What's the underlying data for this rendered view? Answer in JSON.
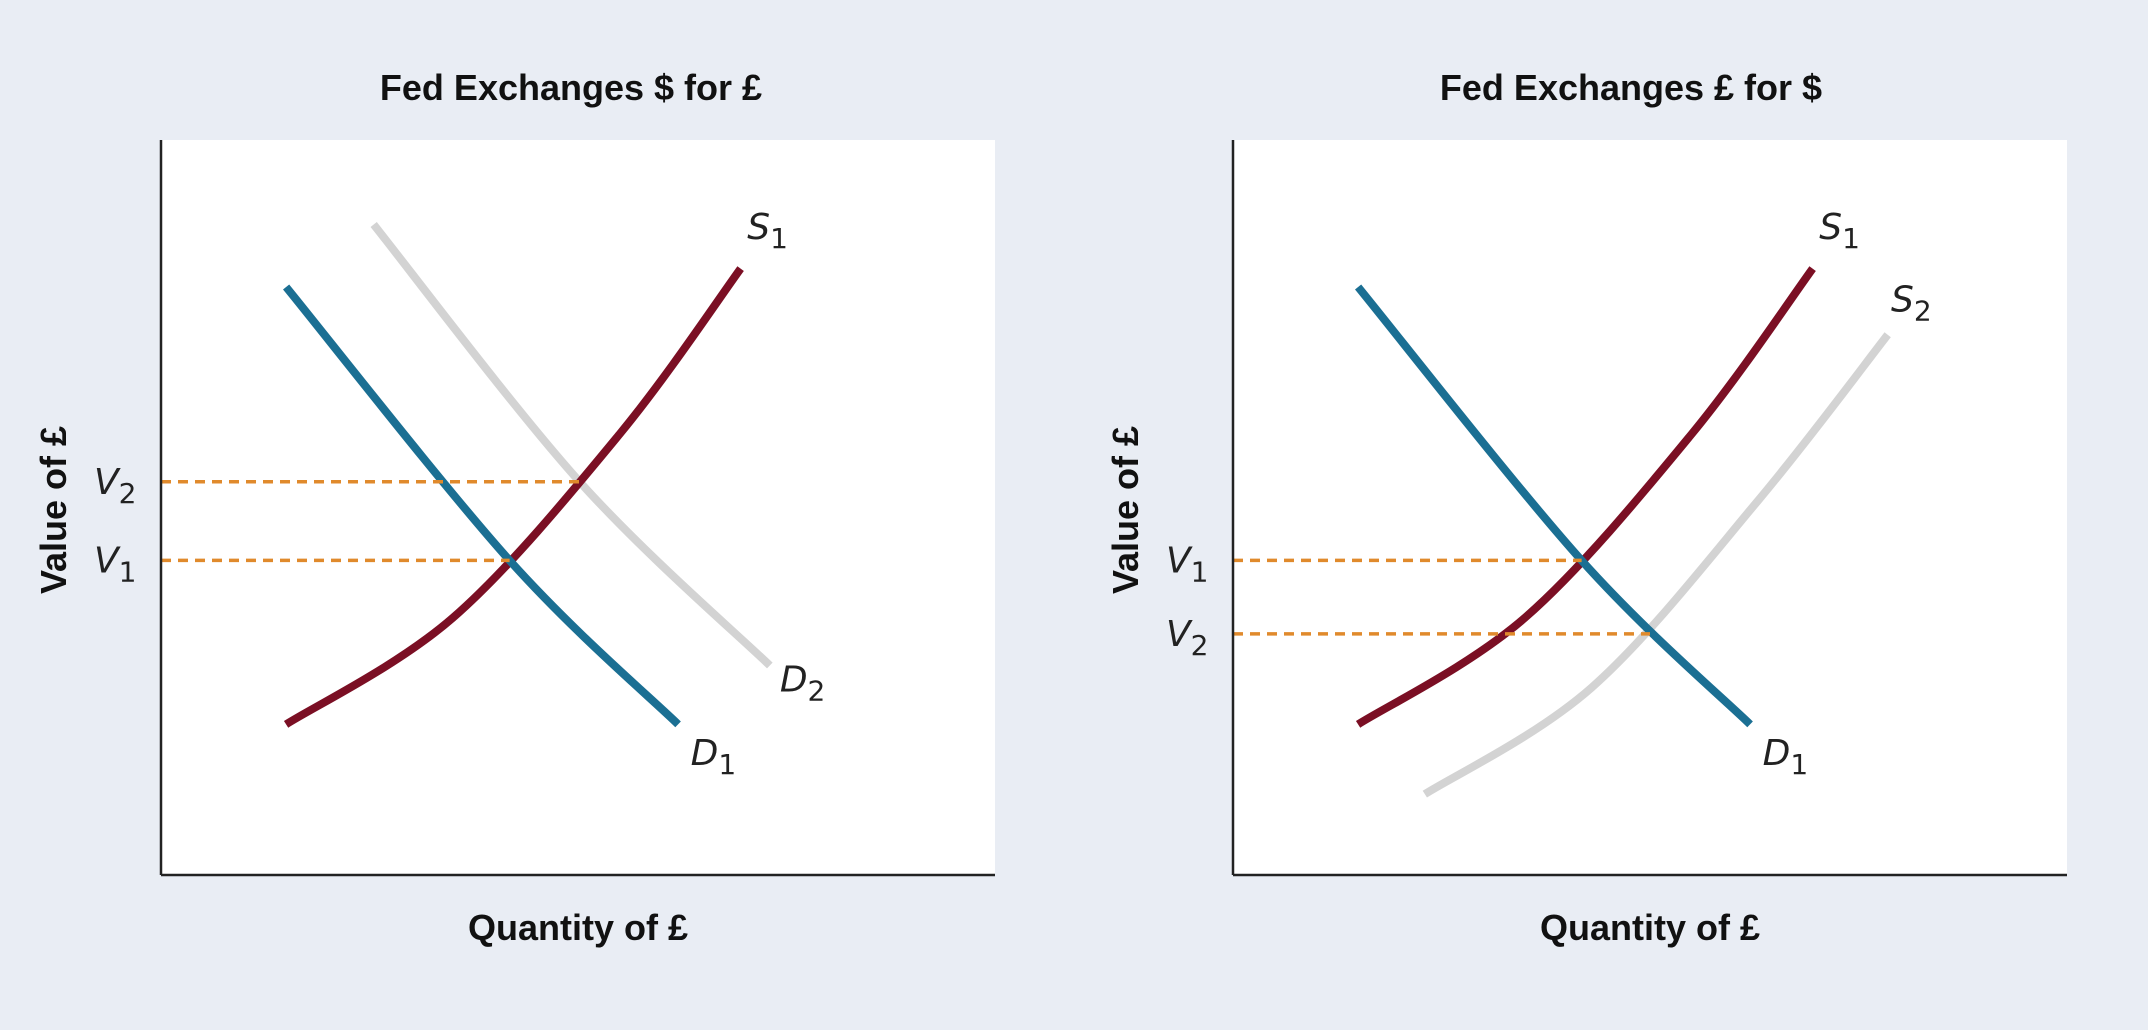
{
  "colors": {
    "background": "#e9edf4",
    "panel": "#ffffff",
    "demand": "#1b6f93",
    "supply": "#7b0f24",
    "shifted": "#d3d3d3",
    "guide": "#e08a2c",
    "axis": "#222222"
  },
  "chart_data": [
    {
      "type": "line",
      "title": "Fed Exchanges $ for £",
      "xlabel": "Quantity of £",
      "ylabel": "Value of £",
      "xlim": [
        0,
        100
      ],
      "ylim": [
        0,
        100
      ],
      "grid": false,
      "ticks_y": [
        {
          "base": "V",
          "sub": "2",
          "value": 53.5
        },
        {
          "base": "V",
          "sub": "1",
          "value": 42.8
        }
      ],
      "series": [
        {
          "key": "S1",
          "label_base": "S",
          "label_sub": "1",
          "role": "supply",
          "points": [
            [
              15,
              20.5
            ],
            [
              35,
              35
            ],
            [
              55,
              60
            ],
            [
              69.5,
              82.5
            ]
          ]
        },
        {
          "key": "D1",
          "label_base": "D",
          "label_sub": "1",
          "role": "demand",
          "points": [
            [
              15,
              80
            ],
            [
              41.8,
              42.8
            ],
            [
              62,
              20.5
            ]
          ]
        },
        {
          "key": "D2",
          "label_base": "D",
          "label_sub": "2",
          "role": "shifted",
          "points": [
            [
              25.5,
              88.5
            ],
            [
              50.2,
              53.5
            ],
            [
              73,
              28.5
            ]
          ]
        }
      ]
    },
    {
      "type": "line",
      "title": "Fed Exchanges £ for $",
      "xlabel": "Quantity of £",
      "ylabel": "Value of £",
      "xlim": [
        0,
        100
      ],
      "ylim": [
        0,
        100
      ],
      "grid": false,
      "ticks_y": [
        {
          "base": "V",
          "sub": "1",
          "value": 42.8
        },
        {
          "base": "V",
          "sub": "2",
          "value": 32.8
        }
      ],
      "series": [
        {
          "key": "S1",
          "label_base": "S",
          "label_sub": "1",
          "role": "supply",
          "points": [
            [
              15,
              20.5
            ],
            [
              35,
              35
            ],
            [
              55,
              60
            ],
            [
              69.5,
              82.5
            ]
          ]
        },
        {
          "key": "S2",
          "label_base": "S",
          "label_sub": "2",
          "role": "shifted",
          "points": [
            [
              23,
              11
            ],
            [
              43,
              25.5
            ],
            [
              63,
              51
            ],
            [
              78.5,
              73.5
            ]
          ]
        },
        {
          "key": "D1",
          "label_base": "D",
          "label_sub": "1",
          "role": "demand",
          "points": [
            [
              15,
              80
            ],
            [
              41.8,
              42.8
            ],
            [
              62,
              20.5
            ]
          ]
        }
      ]
    }
  ]
}
